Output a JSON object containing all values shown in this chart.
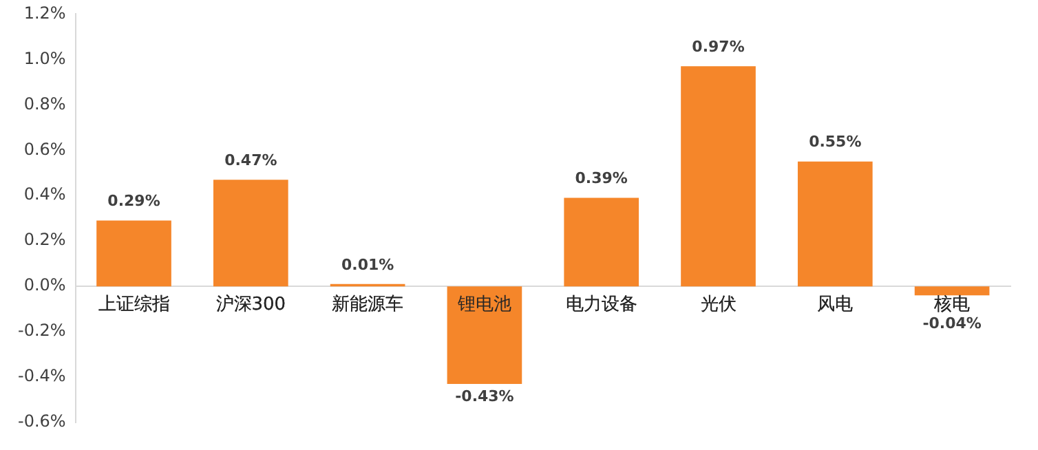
{
  "chart_data": {
    "type": "bar",
    "categories": [
      "上证综指",
      "沪深300",
      "新能源车",
      "锂电池",
      "电力设备",
      "光伏",
      "风电",
      "核电"
    ],
    "values": [
      0.29,
      0.47,
      0.01,
      -0.43,
      0.39,
      0.97,
      0.55,
      -0.04
    ],
    "value_labels": [
      "0.29%",
      "0.47%",
      "0.01%",
      "-0.43%",
      "0.39%",
      "0.97%",
      "0.55%",
      "-0.04%"
    ],
    "color": "#f5862a",
    "ylim": [
      -0.6,
      1.2
    ],
    "yticks": [
      {
        "value": -0.6,
        "label": "-0.6%"
      },
      {
        "value": -0.4,
        "label": "-0.4%"
      },
      {
        "value": -0.2,
        "label": "-0.2%"
      },
      {
        "value": 0,
        "label": "0.0%"
      },
      {
        "value": 0.2,
        "label": "0.2%"
      },
      {
        "value": 0.4,
        "label": "0.4%"
      },
      {
        "value": 0.6,
        "label": "0.6%"
      },
      {
        "value": 0.8,
        "label": "0.8%"
      },
      {
        "value": 1.0,
        "label": "1.0%"
      },
      {
        "value": 1.2,
        "label": "1.2%"
      }
    ],
    "grid": false,
    "legend": false
  }
}
